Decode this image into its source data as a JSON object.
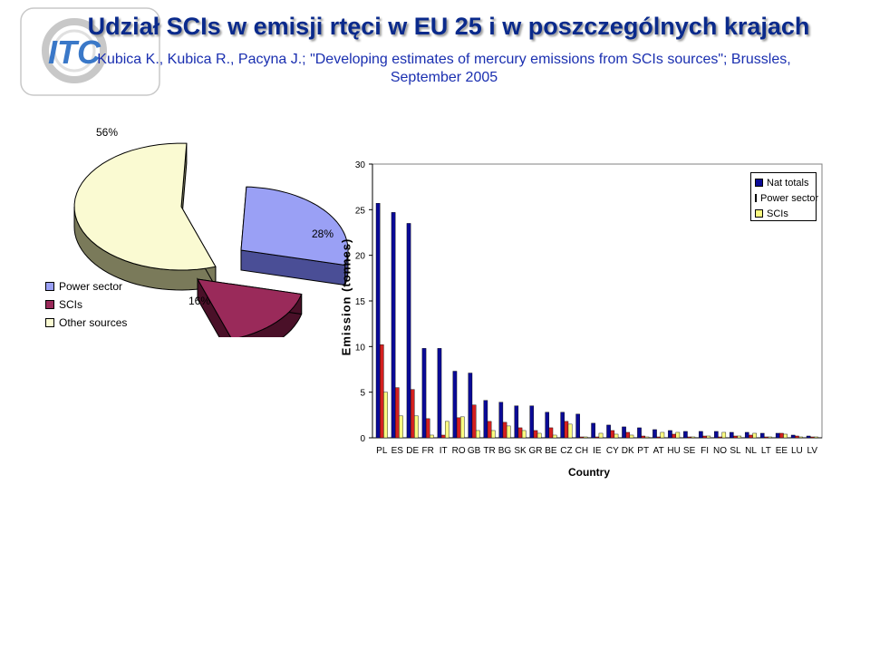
{
  "title": "Udział SCIs w emisji rtęci w EU 25 i w poszczególnych krajach",
  "subtitle": {
    "line1": "Kubica K., Kubica R., Pacyna J.; \"Developing estimates of mercury emissions from SCIs sources\"; Brussles,",
    "line2": "September 2005"
  },
  "logo": {
    "text": "ITC",
    "accent": "#3a78c8",
    "ring": "#c8c8c8"
  },
  "chart_data": [
    {
      "type": "pie",
      "slices": [
        {
          "name": "Power sector",
          "value": 28,
          "label": "28%",
          "color": "#9aa0f5",
          "side": "#4a4e96"
        },
        {
          "name": "SCIs",
          "value": 16,
          "label": "16%",
          "color": "#9a2a5a",
          "side": "#4a1028"
        },
        {
          "name": "Other sources",
          "value": 56,
          "label": "56%",
          "color": "#fafad2",
          "side": "#7a7a5a"
        }
      ],
      "legend": [
        "Power sector",
        "SCIs",
        "Other sources"
      ],
      "legend_position": "left",
      "style": "3d-exploded"
    },
    {
      "type": "bar",
      "xlabel": "Country",
      "ylabel": "Emission (tonnes)",
      "ylim": [
        0,
        30
      ],
      "yticks": [
        "0",
        "5",
        "10",
        "15",
        "20",
        "25",
        "30"
      ],
      "grid": false,
      "legend_position": "top-right",
      "categories": [
        "PL",
        "ES",
        "DE",
        "FR",
        "IT",
        "RO",
        "GB",
        "TR",
        "BG",
        "SK",
        "GR",
        "BE",
        "CZ",
        "CH",
        "IE",
        "CY",
        "DK",
        "PT",
        "AT",
        "HU",
        "SE",
        "FI",
        "NO",
        "SL",
        "NL",
        "LT",
        "EE",
        "LU",
        "LV"
      ],
      "series": [
        {
          "name": "Nat totals",
          "color": "#0a0a96",
          "values": [
            25.7,
            24.7,
            23.5,
            9.8,
            9.8,
            7.3,
            7.1,
            4.1,
            3.9,
            3.5,
            3.5,
            2.8,
            2.8,
            2.6,
            1.6,
            1.4,
            1.2,
            1.1,
            0.9,
            0.8,
            0.7,
            0.7,
            0.7,
            0.6,
            0.6,
            0.5,
            0.5,
            0.3,
            0.2
          ]
        },
        {
          "name": "Power sector",
          "color": "#d42020",
          "values": [
            10.2,
            5.5,
            5.3,
            2.1,
            0.3,
            2.2,
            3.6,
            1.8,
            1.7,
            1.1,
            0.8,
            1.1,
            1.8,
            0.1,
            0.1,
            0.8,
            0.6,
            0.2,
            0.1,
            0.4,
            0.1,
            0.2,
            0.1,
            0.2,
            0.3,
            0.1,
            0.5,
            0.2,
            0.1
          ]
        },
        {
          "name": "SCIs",
          "color": "#fafa80",
          "values": [
            5.0,
            2.4,
            2.4,
            0.3,
            1.8,
            2.3,
            0.8,
            0.8,
            1.3,
            0.8,
            0.5,
            0.3,
            1.5,
            0.1,
            0.5,
            0.4,
            0.3,
            0.1,
            0.6,
            0.6,
            0.1,
            0.2,
            0.6,
            0.2,
            0.5,
            0.1,
            0.4,
            0.1,
            0.1
          ]
        }
      ]
    }
  ]
}
